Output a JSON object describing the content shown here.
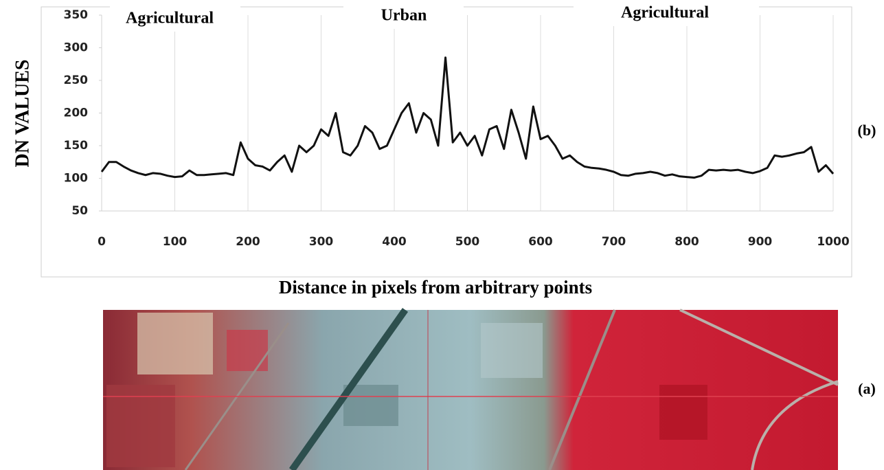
{
  "chart_data": {
    "type": "line",
    "y_label": "DN  VALUES",
    "x_label": "Distance in pixels from arbitrary points",
    "annotations": [
      "Agricultural",
      "Urban",
      "Agricultural"
    ],
    "panel_labels": [
      "(b)",
      "(a)"
    ],
    "color": "#111111",
    "grid": true,
    "xlim": [
      0,
      1000
    ],
    "xticks": [
      0,
      100,
      200,
      300,
      400,
      500,
      600,
      700,
      800,
      900,
      1000
    ],
    "ylim": [
      50,
      350
    ],
    "yticks": [
      50,
      100,
      150,
      200,
      250,
      300,
      350
    ],
    "x": [
      0,
      10,
      20,
      30,
      40,
      50,
      60,
      70,
      80,
      90,
      100,
      110,
      120,
      130,
      140,
      150,
      160,
      170,
      180,
      190,
      200,
      210,
      220,
      230,
      240,
      250,
      260,
      270,
      280,
      290,
      300,
      310,
      320,
      330,
      340,
      350,
      360,
      370,
      380,
      390,
      400,
      410,
      420,
      430,
      440,
      450,
      460,
      470,
      480,
      490,
      500,
      510,
      520,
      530,
      540,
      550,
      560,
      570,
      580,
      590,
      600,
      610,
      620,
      630,
      640,
      650,
      660,
      670,
      680,
      690,
      700,
      710,
      720,
      730,
      740,
      750,
      760,
      770,
      780,
      790,
      800,
      810,
      820,
      830,
      840,
      850,
      860,
      870,
      880,
      890,
      900,
      910,
      920,
      930,
      940,
      950,
      960,
      970,
      980,
      990,
      1000
    ],
    "values": [
      110,
      125,
      125,
      118,
      112,
      108,
      105,
      108,
      107,
      104,
      102,
      103,
      112,
      105,
      105,
      106,
      107,
      108,
      105,
      155,
      130,
      120,
      118,
      112,
      125,
      135,
      110,
      150,
      140,
      150,
      175,
      165,
      200,
      140,
      135,
      150,
      180,
      170,
      145,
      150,
      175,
      200,
      215,
      170,
      200,
      190,
      150,
      285,
      155,
      170,
      150,
      165,
      135,
      175,
      180,
      145,
      205,
      170,
      130,
      210,
      160,
      165,
      150,
      130,
      135,
      125,
      118,
      116,
      115,
      113,
      110,
      105,
      104,
      107,
      108,
      110,
      108,
      104,
      106,
      103,
      102,
      101,
      104,
      113,
      112,
      113,
      112,
      113,
      110,
      108,
      111,
      116,
      135,
      133,
      135,
      138,
      140,
      148,
      110,
      120,
      107
    ]
  }
}
